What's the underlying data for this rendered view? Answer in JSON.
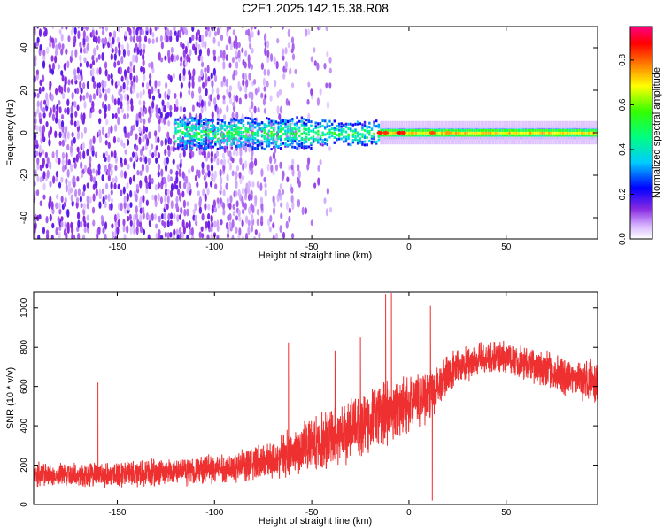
{
  "title": "C2E1.2025.142.15.38.R08",
  "chart_data": [
    {
      "type": "heatmap",
      "xlabel": "Height of straight line (km)",
      "ylabel": "Frequency (Hz)",
      "xlim": [
        -193,
        97
      ],
      "ylim": [
        -50,
        50
      ],
      "xticks": [
        -150,
        -100,
        -50,
        0,
        50
      ],
      "yticks": [
        -40,
        -20,
        0,
        20,
        40
      ],
      "colorbar": {
        "label": "Normalized spectral amplitude",
        "range": [
          0.0,
          0.95
        ],
        "ticks": [
          0.0,
          0.2,
          0.4,
          0.6,
          0.8
        ],
        "colormap": "rainbow (white-violet-blue-cyan-green-yellow-red-magenta)"
      },
      "features": {
        "diffuse_noise_x_range": [
          -193,
          -40
        ],
        "central_band_center_freq": 0,
        "strong_band_x_range": [
          -15,
          97
        ]
      }
    },
    {
      "type": "line",
      "xlabel": "Height of straight line (km)",
      "ylabel": "SNR (10 * v/v)",
      "xlim": [
        -193,
        97
      ],
      "ylim": [
        0,
        1080
      ],
      "xticks": [
        -150,
        -100,
        -50,
        0,
        50
      ],
      "yticks": [
        0,
        200,
        400,
        600,
        800,
        1000
      ],
      "series": [
        {
          "color": "#ee3030",
          "profile": [
            {
              "x": -193,
              "mean": 150,
              "spread": 60
            },
            {
              "x": -160,
              "mean": 150,
              "spread": 60
            },
            {
              "x": -120,
              "mean": 165,
              "spread": 65
            },
            {
              "x": -90,
              "mean": 190,
              "spread": 75
            },
            {
              "x": -70,
              "mean": 230,
              "spread": 95
            },
            {
              "x": -50,
              "mean": 300,
              "spread": 130
            },
            {
              "x": -35,
              "mean": 360,
              "spread": 150
            },
            {
              "x": -20,
              "mean": 430,
              "spread": 160
            },
            {
              "x": -5,
              "mean": 490,
              "spread": 140
            },
            {
              "x": 10,
              "mean": 560,
              "spread": 130
            },
            {
              "x": 25,
              "mean": 700,
              "spread": 90
            },
            {
              "x": 45,
              "mean": 760,
              "spread": 80
            },
            {
              "x": 60,
              "mean": 720,
              "spread": 80
            },
            {
              "x": 80,
              "mean": 650,
              "spread": 90
            },
            {
              "x": 97,
              "mean": 620,
              "spread": 100
            }
          ],
          "spikes": [
            {
              "x": -160,
              "y": 620
            },
            {
              "x": -62,
              "y": 820
            },
            {
              "x": -38,
              "y": 780
            },
            {
              "x": -25,
              "y": 850
            },
            {
              "x": -12,
              "y": 1070
            },
            {
              "x": -9,
              "y": 1075
            },
            {
              "x": 11,
              "y": 1010
            },
            {
              "x": 12,
              "y": 20
            }
          ]
        }
      ]
    }
  ]
}
